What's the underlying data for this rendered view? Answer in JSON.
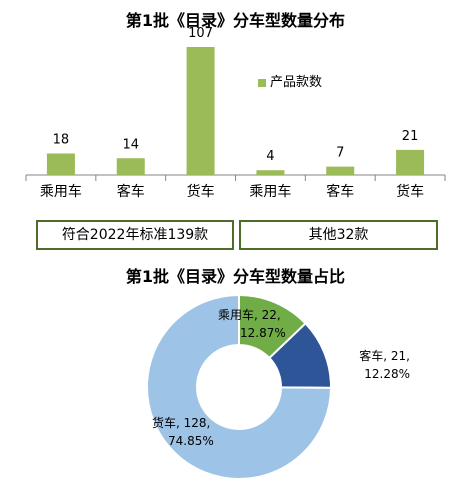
{
  "chart_data": [
    {
      "type": "bar",
      "title": "第1批《目录》分车型数量分布",
      "categories": [
        "乘用车",
        "客车",
        "货车",
        "乘用车",
        "客车",
        "货车"
      ],
      "series": [
        {
          "name": "产品款数",
          "values": [
            18,
            14,
            107,
            4,
            7,
            21
          ]
        }
      ],
      "groups": [
        {
          "label": "符合2022年标准139款",
          "categories": [
            "乘用车",
            "客车",
            "货车"
          ]
        },
        {
          "label": "其他32款",
          "categories": [
            "乘用车",
            "客车",
            "货车"
          ]
        }
      ],
      "ylim": [
        0,
        110
      ],
      "grid": false,
      "legend": "right",
      "colors": {
        "bar": "#9bbb59"
      }
    },
    {
      "type": "pie",
      "title": "第1批《目录》分车型数量占比",
      "donut": true,
      "slices": [
        {
          "label": "乘用车",
          "value": 22,
          "percent": "12.87%",
          "text": "乘用车, 22,",
          "color": "#70ad47"
        },
        {
          "label": "客车",
          "value": 21,
          "percent": "12.28%",
          "text": "客车, 21,",
          "color": "#2e5597"
        },
        {
          "label": "货车",
          "value": 128,
          "percent": "74.85%",
          "text": "货车, 128,",
          "color": "#9dc3e6"
        }
      ]
    }
  ]
}
